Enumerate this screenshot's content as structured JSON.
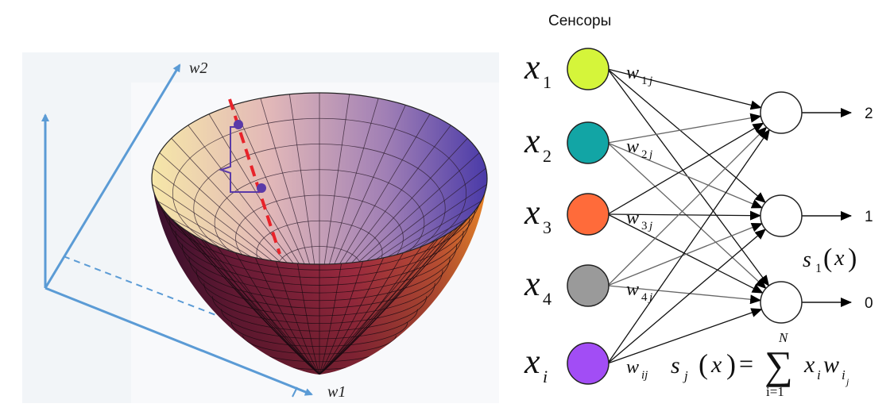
{
  "surface_panel": {
    "axis_w2_label": "w2",
    "axis_w1_label": "w1",
    "colors": {
      "axis": "#5b9bd5",
      "gradient_line": "#e8232a",
      "gradient_marker": "#5a3aa8",
      "panel_bg": "#f2f5f8"
    }
  },
  "network": {
    "title": "Сенсоры",
    "inputs": [
      {
        "var": "x",
        "sub": "1",
        "color": "#d5f53a",
        "weight_base": "w",
        "weight_sub": "1",
        "weight_subsub": "j"
      },
      {
        "var": "x",
        "sub": "2",
        "color": "#12a5a5",
        "weight_base": "w",
        "weight_sub": "2",
        "weight_subsub": "j"
      },
      {
        "var": "x",
        "sub": "3",
        "color": "#ff6b3a",
        "weight_base": "w",
        "weight_sub": "3",
        "weight_subsub": "j"
      },
      {
        "var": "x",
        "sub": "4",
        "color": "#9a9a9a",
        "weight_base": "w",
        "weight_sub": "4",
        "weight_subsub": "j"
      },
      {
        "var": "x",
        "sub": "i",
        "color": "#a24df5",
        "weight_base": "w",
        "weight_sub": "ij",
        "weight_subsub": ""
      }
    ],
    "outputs": [
      {
        "label": "2"
      },
      {
        "label": "1"
      },
      {
        "label": "0"
      }
    ],
    "s1_label": {
      "base": "s",
      "sub": "1",
      "arg": "x"
    },
    "formula": {
      "lhs_base": "s",
      "lhs_sub": "j",
      "arg": "x",
      "equals": "=",
      "sum_symbol": "∑",
      "upper_limit": "N",
      "lower_limit": "i=1",
      "term_x": "x",
      "term_x_sub": "i",
      "term_w": "w",
      "term_w_sub": "i",
      "term_w_subsub": "j"
    }
  }
}
